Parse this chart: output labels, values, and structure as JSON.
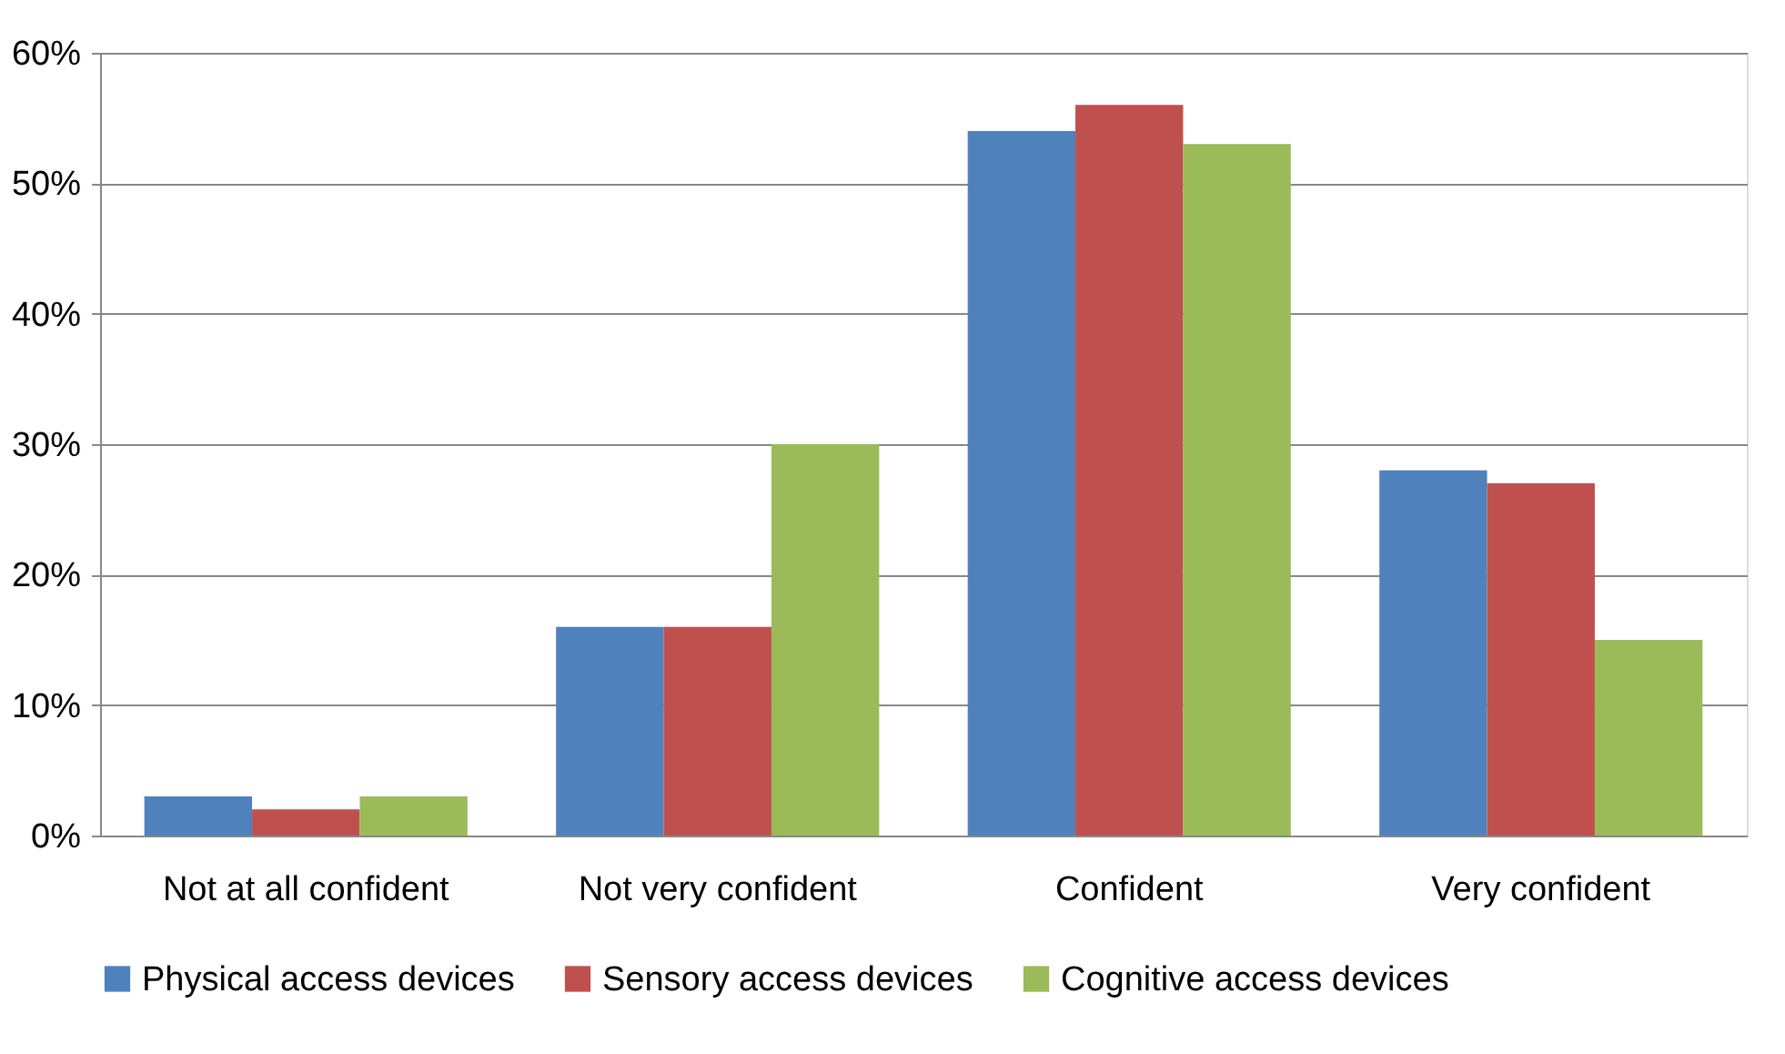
{
  "chart_data": {
    "type": "bar",
    "categories": [
      "Not at all confident",
      "Not very confident",
      "Confident",
      "Very confident"
    ],
    "series": [
      {
        "name": "Physical access devices",
        "color": "#4f81bd",
        "values": [
          3,
          16,
          54,
          28
        ]
      },
      {
        "name": "Sensory access devices",
        "color": "#c0504d",
        "values": [
          2,
          16,
          56,
          27
        ]
      },
      {
        "name": "Cognitive access devices",
        "color": "#9bbb59",
        "values": [
          3,
          30,
          53,
          15
        ]
      }
    ],
    "ylim": [
      0,
      60
    ],
    "yticks": [
      {
        "value": 0,
        "label": "0%"
      },
      {
        "value": 10,
        "label": "10%"
      },
      {
        "value": 20,
        "label": "20%"
      },
      {
        "value": 30,
        "label": "30%"
      },
      {
        "value": 40,
        "label": "40%"
      },
      {
        "value": 50,
        "label": "50%"
      },
      {
        "value": 60,
        "label": "60%"
      }
    ],
    "grid": "y",
    "legend": "bottom"
  }
}
